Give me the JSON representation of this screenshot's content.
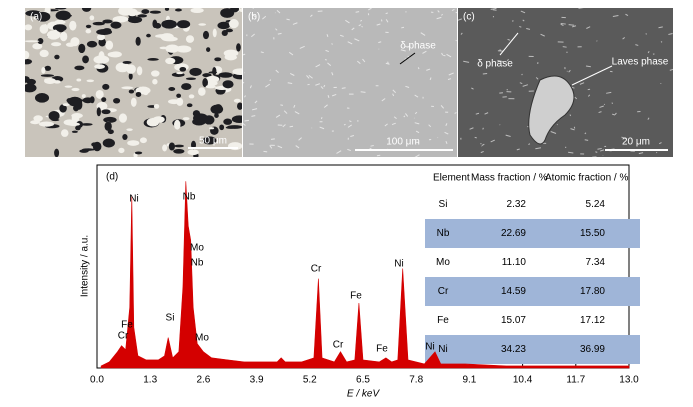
{
  "panels": [
    {
      "label": "(a)",
      "scale_bar": "50 μm"
    },
    {
      "label": "(b)",
      "annotations": [
        "δ phase"
      ],
      "scale_bar": "100 μm"
    },
    {
      "label": "(c)",
      "annotations": [
        "δ phase",
        "Laves phase"
      ],
      "scale_bar": "20 μm"
    }
  ],
  "chart_data": {
    "type": "area",
    "panel_label": "(d)",
    "x_label": "E / keV",
    "y_label": "Intensity / a.u.",
    "color": "#d40000",
    "x": [
      0.1,
      0.3,
      0.5,
      0.6,
      0.7,
      0.8,
      0.85,
      0.9,
      1.0,
      1.2,
      1.5,
      1.65,
      1.74,
      1.85,
      2.0,
      2.1,
      2.17,
      2.23,
      2.29,
      2.35,
      2.45,
      2.6,
      2.8,
      3.2,
      3.6,
      4.0,
      4.4,
      4.5,
      4.6,
      5.0,
      5.3,
      5.41,
      5.5,
      5.8,
      5.95,
      6.1,
      6.3,
      6.4,
      6.5,
      6.9,
      7.06,
      7.2,
      7.35,
      7.47,
      7.6,
      8.0,
      8.26,
      8.4,
      9.0,
      10.0,
      11.0,
      12.0,
      13.0
    ],
    "values": [
      1,
      3,
      8,
      11,
      9,
      30,
      85,
      20,
      6,
      4,
      4,
      6,
      15,
      5,
      8,
      40,
      92,
      70,
      63,
      30,
      12,
      8,
      5,
      4,
      3,
      3,
      3,
      5,
      3,
      3,
      5,
      44,
      5,
      3,
      8,
      3,
      4,
      32,
      4,
      3,
      5,
      3,
      4,
      49,
      4,
      2,
      8,
      2,
      2,
      1,
      1,
      1,
      1
    ],
    "xlim": [
      0,
      13.0
    ],
    "ylim": [
      0,
      100
    ],
    "xticks": [
      {
        "value": 0,
        "label": "0.0"
      },
      1.3,
      2.6,
      3.9,
      5.2,
      6.5,
      7.8,
      9.1,
      10.4,
      11.7,
      {
        "value": 13,
        "label": "13.0"
      }
    ],
    "annotations": [
      "Ni",
      "Fe",
      "Cr",
      "Si",
      "Nb",
      "Mo",
      "Nb",
      "Mo",
      "Cr",
      "Cr",
      "Fe",
      "Fe",
      "Ni",
      "Ni"
    ]
  },
  "table": {
    "header": [
      "Element",
      "Mass fraction / %",
      "Atomic fraction / %"
    ],
    "rows": [
      [
        "Si",
        "2.32",
        "5.24"
      ],
      [
        "Nb",
        "22.69",
        "15.50"
      ],
      [
        "Mo",
        "11.10",
        "7.34"
      ],
      [
        "Cr",
        "14.59",
        "17.80"
      ],
      [
        "Fe",
        "15.07",
        "17.12"
      ],
      [
        "Ni",
        "34.23",
        "36.99"
      ]
    ]
  }
}
